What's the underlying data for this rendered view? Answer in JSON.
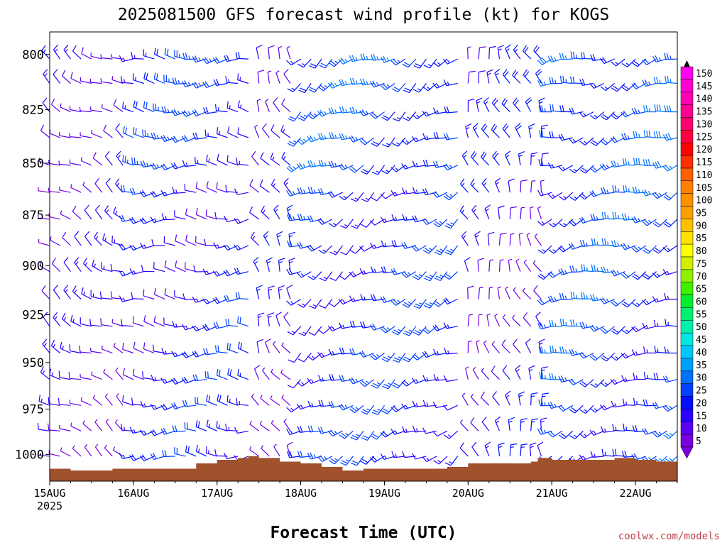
{
  "chart_data": {
    "type": "wind_barb_profile",
    "title": "2025081500 GFS forecast wind profile (kt) for KOGS",
    "xlabel": "Forecast Time (UTC)",
    "ylabel": "",
    "credit": "coolwx.com/models",
    "y_axis": {
      "scale": "log-pressure",
      "inverted": true,
      "range_hpa": [
        1015,
        790
      ],
      "ticks": [
        800,
        825,
        850,
        875,
        900,
        925,
        950,
        975,
        1000
      ]
    },
    "x_axis": {
      "range_hours": [
        0,
        180
      ],
      "ticks": [
        {
          "hour": 0,
          "label": "15AUG",
          "sublabel": "2025"
        },
        {
          "hour": 24,
          "label": "16AUG",
          "sublabel": ""
        },
        {
          "hour": 48,
          "label": "17AUG",
          "sublabel": ""
        },
        {
          "hour": 72,
          "label": "18AUG",
          "sublabel": ""
        },
        {
          "hour": 96,
          "label": "19AUG",
          "sublabel": ""
        },
        {
          "hour": 120,
          "label": "20AUG",
          "sublabel": ""
        },
        {
          "hour": 144,
          "label": "21AUG",
          "sublabel": ""
        },
        {
          "hour": 168,
          "label": "22AUG",
          "sublabel": ""
        }
      ]
    },
    "barb_levels_hpa": [
      790,
      802,
      813,
      826,
      838,
      851,
      864,
      877,
      890,
      903,
      917,
      931,
      945,
      959,
      973,
      987,
      1001
    ],
    "surface_pressure_hpa": [
      {
        "hour": 0,
        "p": 1008
      },
      {
        "hour": 6,
        "p": 1009
      },
      {
        "hour": 12,
        "p": 1009
      },
      {
        "hour": 18,
        "p": 1008
      },
      {
        "hour": 24,
        "p": 1008
      },
      {
        "hour": 30,
        "p": 1008
      },
      {
        "hour": 36,
        "p": 1008
      },
      {
        "hour": 42,
        "p": 1005
      },
      {
        "hour": 48,
        "p": 1003
      },
      {
        "hour": 54,
        "p": 1002
      },
      {
        "hour": 57,
        "p": 1001
      },
      {
        "hour": 60,
        "p": 1002
      },
      {
        "hour": 66,
        "p": 1004
      },
      {
        "hour": 72,
        "p": 1005
      },
      {
        "hour": 78,
        "p": 1007
      },
      {
        "hour": 84,
        "p": 1009
      },
      {
        "hour": 90,
        "p": 1008
      },
      {
        "hour": 96,
        "p": 1008
      },
      {
        "hour": 102,
        "p": 1008
      },
      {
        "hour": 108,
        "p": 1008
      },
      {
        "hour": 114,
        "p": 1007
      },
      {
        "hour": 120,
        "p": 1005
      },
      {
        "hour": 126,
        "p": 1005
      },
      {
        "hour": 132,
        "p": 1005
      },
      {
        "hour": 138,
        "p": 1004
      },
      {
        "hour": 140,
        "p": 1002
      },
      {
        "hour": 144,
        "p": 1003
      },
      {
        "hour": 150,
        "p": 1003
      },
      {
        "hour": 156,
        "p": 1003
      },
      {
        "hour": 162,
        "p": 1002
      },
      {
        "hour": 168,
        "p": 1003
      },
      {
        "hour": 174,
        "p": 1004
      },
      {
        "hour": 180,
        "p": 1005
      }
    ],
    "colorbar": {
      "levels": [
        5,
        10,
        15,
        20,
        25,
        30,
        35,
        40,
        45,
        50,
        55,
        60,
        65,
        70,
        75,
        80,
        85,
        90,
        95,
        100,
        105,
        110,
        115,
        120,
        125,
        130,
        135,
        140,
        145,
        150
      ],
      "colors": [
        "#7b00e0",
        "#5a00f0",
        "#2a00ff",
        "#0010ff",
        "#0040ff",
        "#0070ff",
        "#00a0ff",
        "#00c8ff",
        "#00e8e0",
        "#00f0b0",
        "#00f070",
        "#00f030",
        "#40f000",
        "#90f000",
        "#d0f000",
        "#ffff00",
        "#ffe000",
        "#ffc000",
        "#ffa000",
        "#ff9000",
        "#ff8000",
        "#ff6000",
        "#ff3000",
        "#ff0000",
        "#ff0040",
        "#ff0070",
        "#ff0090",
        "#ff00b0",
        "#ff00d0",
        "#ff00f0"
      ]
    },
    "colors": {
      "terrain": "#a0522d",
      "barb_low": "#7b00e0",
      "barb_high": "#0040ff",
      "credit": "#c0404a"
    },
    "wind_regimes_kt": [
      {
        "from_hour": 0,
        "to_hour": 24,
        "direction_deg": 300,
        "speed_kt": 8
      },
      {
        "from_hour": 24,
        "to_hour": 60,
        "direction_deg": 270,
        "speed_kt": 15
      },
      {
        "from_hour": 60,
        "to_hour": 72,
        "direction_deg": 330,
        "speed_kt": 10
      },
      {
        "from_hour": 72,
        "to_hour": 120,
        "direction_deg": 240,
        "speed_kt": 18
      },
      {
        "from_hour": 120,
        "to_hour": 144,
        "direction_deg": 340,
        "speed_kt": 10
      },
      {
        "from_hour": 144,
        "to_hour": 180,
        "direction_deg": 250,
        "speed_kt": 20
      }
    ]
  }
}
